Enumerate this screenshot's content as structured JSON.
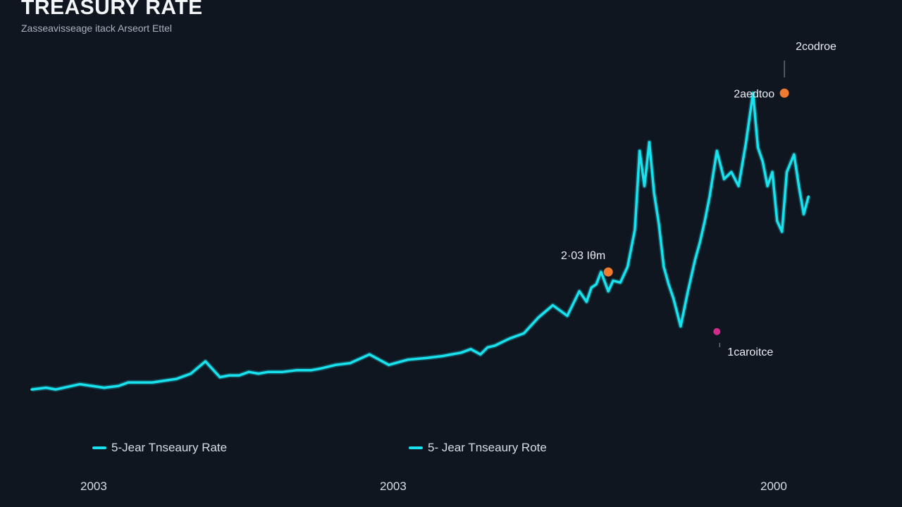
{
  "title": "TREASURY RATE",
  "subtitle": "Zasseavisseage itack Arseort Ettel",
  "colors": {
    "background": "#0f1620",
    "series_line": "#18e2ee",
    "marker_peak": "#f07a2e",
    "marker_trough": "#d22a8c",
    "text": "#d8dee5"
  },
  "legend": [
    {
      "label": "5-Jear Tnseaury Rate",
      "color": "#18e2ee"
    },
    {
      "label": "5- Jear Tnseaury Rote",
      "color": "#18e2ee"
    }
  ],
  "annotations": [
    {
      "label": "2·03 Iθm",
      "kind": "peak",
      "x": 2014.95,
      "y": 3.35
    },
    {
      "label": "2aedtoo",
      "kind": "peak",
      "x": 2018.6,
      "y": 8.45
    },
    {
      "label": "1caroitce",
      "kind": "trough",
      "x": 2017.2,
      "y": 1.65
    },
    {
      "label": "2codroe",
      "kind": "top-label",
      "x": 2018.6,
      "y": 9.5
    }
  ],
  "chart_data": {
    "type": "line",
    "title": "TREASURY RATE",
    "subtitle": "Zasseavisseage itack Arseort Ettel",
    "xlabel": "",
    "ylabel": "",
    "xlim": [
      2003,
      2019.65
    ],
    "ylim": [
      -0.3,
      9.7
    ],
    "x_tick_labels": [
      "2003",
      "2003",
      "2000"
    ],
    "grid": false,
    "legend_placement": "bottom",
    "series": [
      {
        "name": "5-Jear Tnseaury Rate",
        "x": [
          2003.0,
          2003.3,
          2003.5,
          2004.0,
          2004.5,
          2004.8,
          2005.0,
          2005.5,
          2006.0,
          2006.3,
          2006.6,
          2006.9,
          2007.1,
          2007.3,
          2007.5,
          2007.7,
          2007.9,
          2008.2,
          2008.5,
          2008.8,
          2009.0,
          2009.3,
          2009.6,
          2010.0,
          2010.4,
          2010.8,
          2011.2,
          2011.5,
          2011.9,
          2012.1,
          2012.3,
          2012.45,
          2012.6,
          2012.9,
          2013.2,
          2013.5,
          2013.8,
          2014.1,
          2014.35,
          2014.5,
          2014.6,
          2014.7,
          2014.8,
          2014.95,
          2015.05,
          2015.2,
          2015.35,
          2015.5,
          2015.6,
          2015.7,
          2015.8,
          2015.9,
          2016.0,
          2016.1,
          2016.2,
          2016.3,
          2016.45,
          2016.6,
          2016.75,
          2016.85,
          2016.95,
          2017.05,
          2017.2,
          2017.35,
          2017.5,
          2017.65,
          2017.8,
          2017.95,
          2018.05,
          2018.15,
          2018.25,
          2018.3,
          2018.35,
          2018.45,
          2018.55,
          2018.65,
          2018.8,
          2018.9,
          2019.0,
          2019.1
        ],
        "y": [
          0.0,
          0.05,
          0.0,
          0.15,
          0.05,
          0.1,
          0.2,
          0.2,
          0.3,
          0.45,
          0.8,
          0.35,
          0.4,
          0.4,
          0.5,
          0.45,
          0.5,
          0.5,
          0.55,
          0.55,
          0.6,
          0.7,
          0.75,
          1.0,
          0.7,
          0.85,
          0.9,
          0.95,
          1.05,
          1.15,
          1.0,
          1.2,
          1.25,
          1.45,
          1.6,
          2.05,
          2.4,
          2.1,
          2.8,
          2.5,
          2.9,
          3.0,
          3.35,
          2.8,
          3.1,
          3.05,
          3.5,
          4.55,
          6.8,
          5.8,
          7.05,
          5.6,
          4.7,
          3.5,
          3.0,
          2.6,
          1.8,
          2.8,
          3.7,
          4.2,
          4.8,
          5.5,
          6.8,
          6.0,
          6.2,
          5.8,
          7.0,
          8.45,
          6.9,
          6.5,
          5.8,
          6.0,
          6.2,
          4.8,
          4.5,
          6.2,
          6.7,
          5.8,
          5.0,
          5.5
        ]
      }
    ]
  }
}
